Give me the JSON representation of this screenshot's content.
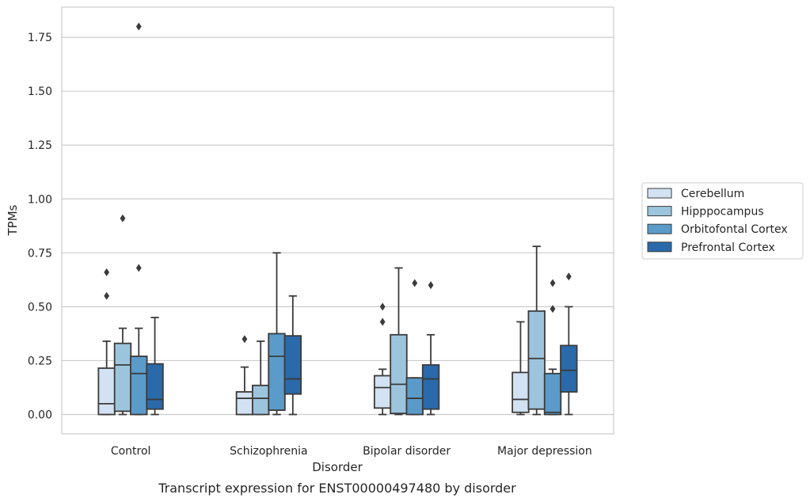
{
  "chart_data": {
    "type": "box",
    "title": "",
    "caption": "Transcript expression for ENST00000497480 by disorder",
    "xlabel": "Disorder",
    "ylabel": "TPMs",
    "ylim": [
      -0.09,
      1.89
    ],
    "yticks": [
      "0.00",
      "0.25",
      "0.50",
      "0.75",
      "1.00",
      "1.25",
      "1.50",
      "1.75"
    ],
    "grid": "horizontal",
    "legend_position": "right",
    "categories": [
      "Control",
      "Schizophrenia",
      "Bipolar disorder",
      "Major depression"
    ],
    "series": [
      {
        "name": "Cerebellum",
        "color": "#d3e2f2",
        "boxes": [
          {
            "whislo": 0.0,
            "q1": 0.0,
            "med": 0.05,
            "q3": 0.215,
            "whishi": 0.34,
            "fliers": [
              0.55,
              0.66
            ]
          },
          {
            "whislo": 0.0,
            "q1": 0.0,
            "med": 0.075,
            "q3": 0.105,
            "whishi": 0.22,
            "fliers": [
              0.35
            ]
          },
          {
            "whislo": 0.0,
            "q1": 0.03,
            "med": 0.125,
            "q3": 0.18,
            "whishi": 0.21,
            "fliers": [
              0.43,
              0.5
            ]
          },
          {
            "whislo": 0.0,
            "q1": 0.01,
            "med": 0.07,
            "q3": 0.195,
            "whishi": 0.43,
            "fliers": []
          }
        ]
      },
      {
        "name": "Hipppocampus",
        "color": "#9dc4dd",
        "boxes": [
          {
            "whislo": 0.0,
            "q1": 0.015,
            "med": 0.23,
            "q3": 0.33,
            "whishi": 0.4,
            "fliers": [
              0.91
            ]
          },
          {
            "whislo": 0.0,
            "q1": 0.0,
            "med": 0.075,
            "q3": 0.135,
            "whishi": 0.34,
            "fliers": []
          },
          {
            "whislo": 0.0,
            "q1": 0.005,
            "med": 0.14,
            "q3": 0.37,
            "whishi": 0.68,
            "fliers": []
          },
          {
            "whislo": 0.0,
            "q1": 0.025,
            "med": 0.26,
            "q3": 0.48,
            "whishi": 0.78,
            "fliers": []
          }
        ]
      },
      {
        "name": "Orbitofontal Cortex",
        "color": "#5a9bc9",
        "boxes": [
          {
            "whislo": 0.0,
            "q1": 0.0,
            "med": 0.19,
            "q3": 0.27,
            "whishi": 0.4,
            "fliers": [
              0.68,
              1.8
            ]
          },
          {
            "whislo": 0.0,
            "q1": 0.02,
            "med": 0.27,
            "q3": 0.375,
            "whishi": 0.75,
            "fliers": []
          },
          {
            "whislo": 0.0,
            "q1": 0.0,
            "med": 0.075,
            "q3": 0.17,
            "whishi": 0.17,
            "fliers": [
              0.61
            ]
          },
          {
            "whislo": 0.0,
            "q1": 0.0,
            "med": 0.01,
            "q3": 0.19,
            "whishi": 0.21,
            "fliers": [
              0.49,
              0.61
            ]
          }
        ]
      },
      {
        "name": "Prefrontal Cortex",
        "color": "#2a6aab",
        "boxes": [
          {
            "whislo": 0.0,
            "q1": 0.025,
            "med": 0.07,
            "q3": 0.235,
            "whishi": 0.45,
            "fliers": []
          },
          {
            "whislo": 0.0,
            "q1": 0.095,
            "med": 0.165,
            "q3": 0.365,
            "whishi": 0.55,
            "fliers": []
          },
          {
            "whislo": 0.0,
            "q1": 0.025,
            "med": 0.165,
            "q3": 0.23,
            "whishi": 0.37,
            "fliers": [
              0.6
            ]
          },
          {
            "whislo": 0.0,
            "q1": 0.105,
            "med": 0.205,
            "q3": 0.32,
            "whishi": 0.5,
            "fliers": [
              0.64
            ]
          }
        ]
      }
    ]
  }
}
